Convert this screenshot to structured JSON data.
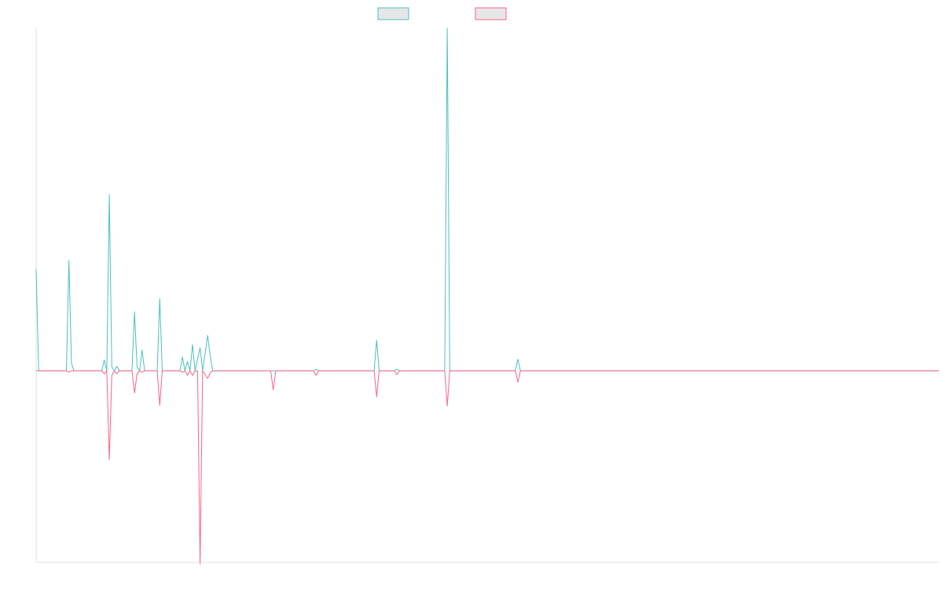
{
  "chart_data": {
    "type": "line",
    "title": "",
    "xlabel": "",
    "ylabel": "",
    "x": [
      0,
      1,
      2,
      3,
      4,
      5,
      6,
      7,
      8,
      9,
      10,
      11,
      12,
      13,
      14,
      15,
      16,
      17,
      18,
      19,
      20,
      21,
      22,
      23,
      24,
      25,
      26,
      27,
      28,
      29,
      30,
      31,
      32,
      33,
      34,
      35,
      36,
      37,
      38,
      39,
      40,
      41,
      42,
      43,
      44,
      45,
      46,
      47,
      48,
      49,
      50,
      51,
      52,
      53,
      54,
      55,
      56,
      57,
      58,
      59,
      60,
      61,
      62,
      63,
      64,
      65,
      66,
      67,
      68,
      69,
      70,
      71,
      72,
      73,
      74,
      75,
      76,
      77,
      78,
      79,
      80,
      81,
      82,
      83,
      84,
      85,
      86,
      87,
      88,
      89,
      90,
      91,
      92,
      93,
      94,
      95,
      96,
      97,
      98,
      99,
      100,
      101,
      102,
      103,
      104,
      105,
      106,
      107,
      108,
      109,
      110,
      111,
      112,
      113,
      114,
      115,
      116,
      117,
      118,
      119,
      120,
      121,
      122,
      123,
      124,
      125,
      126,
      127,
      128,
      129,
      130,
      131,
      132,
      133,
      134,
      135,
      136,
      137,
      138,
      139,
      140,
      141,
      142,
      143,
      144,
      145,
      146,
      147,
      148,
      149,
      150,
      151,
      152,
      153,
      154,
      155,
      156,
      157,
      158,
      159,
      160,
      161,
      162,
      163,
      164,
      165,
      166,
      167,
      168,
      169,
      170,
      171,
      172,
      173,
      174,
      175,
      176,
      177,
      178,
      179,
      180,
      181,
      182,
      183,
      184,
      185,
      186,
      187,
      188,
      189,
      190,
      191,
      192,
      193,
      194,
      195,
      196,
      197,
      198,
      199,
      200,
      201,
      202,
      203,
      204,
      205,
      206,
      207,
      208,
      209,
      210,
      211,
      212,
      213,
      214,
      215,
      216,
      217,
      218,
      219,
      220,
      221,
      222,
      223,
      224,
      225,
      226,
      227,
      228,
      229,
      230,
      231,
      232,
      233,
      234,
      235,
      236,
      237,
      238,
      239,
      240,
      241,
      242,
      243,
      244,
      245,
      246,
      247,
      248,
      249,
      250,
      251,
      252,
      253,
      254,
      255,
      256,
      257,
      258,
      259,
      260,
      261,
      262,
      263,
      264,
      265,
      266,
      267,
      268,
      269,
      270,
      271,
      272,
      273,
      274,
      275,
      276,
      277,
      278,
      279,
      280,
      281,
      282,
      283,
      284,
      285,
      286,
      287,
      288,
      289,
      290,
      291,
      292,
      293,
      294,
      295,
      296,
      297,
      298,
      299,
      300,
      301,
      302,
      303,
      304,
      305,
      306,
      307,
      308,
      309,
      310,
      311,
      312,
      313,
      314,
      315,
      316,
      317,
      318,
      319,
      320,
      321,
      322,
      323,
      324,
      325,
      326,
      327,
      328,
      329,
      330,
      331,
      332,
      333,
      334,
      335,
      336,
      337,
      338,
      339,
      340,
      341,
      342,
      343,
      344,
      345,
      346,
      347,
      348,
      349,
      350,
      351,
      352,
      353,
      354,
      355,
      356,
      357,
      358
    ],
    "ylim": [
      -250,
      447
    ],
    "grid": false,
    "legend_position": "top-center",
    "series": [
      {
        "color": "#4bc0c0",
        "points": [
          [
            0,
            132
          ],
          [
            1,
            0
          ],
          [
            12,
            0
          ],
          [
            13,
            144
          ],
          [
            14,
            10
          ],
          [
            15,
            0
          ],
          [
            26,
            0
          ],
          [
            27,
            14
          ],
          [
            28,
            0
          ],
          [
            29,
            230
          ],
          [
            30,
            5
          ],
          [
            31,
            0
          ],
          [
            32,
            6
          ],
          [
            33,
            0
          ],
          [
            38,
            0
          ],
          [
            39,
            77
          ],
          [
            40,
            5
          ],
          [
            41,
            0
          ],
          [
            42,
            27
          ],
          [
            43,
            0
          ],
          [
            48,
            0
          ],
          [
            49,
            94
          ],
          [
            50,
            0
          ],
          [
            57,
            0
          ],
          [
            58,
            18
          ],
          [
            59,
            0
          ],
          [
            60,
            12
          ],
          [
            61,
            0
          ],
          [
            62,
            34
          ],
          [
            63,
            0
          ],
          [
            65,
            30
          ],
          [
            66,
            0
          ],
          [
            68,
            46
          ],
          [
            69,
            20
          ],
          [
            70,
            0
          ],
          [
            110,
            0
          ],
          [
            111,
            2
          ],
          [
            112,
            0
          ],
          [
            134,
            0
          ],
          [
            135,
            40
          ],
          [
            136,
            0
          ],
          [
            142,
            0
          ],
          [
            143,
            2
          ],
          [
            144,
            0
          ],
          [
            162,
            0
          ],
          [
            163,
            447
          ],
          [
            164,
            0
          ],
          [
            190,
            0
          ],
          [
            191,
            15
          ],
          [
            192,
            0
          ],
          [
            358,
            0
          ]
        ]
      },
      {
        "color": "#ff6384",
        "points": [
          [
            0,
            0
          ],
          [
            12,
            0
          ],
          [
            13,
            -2
          ],
          [
            14,
            0
          ],
          [
            26,
            0
          ],
          [
            27,
            -4
          ],
          [
            28,
            0
          ],
          [
            29,
            -116
          ],
          [
            30,
            -6
          ],
          [
            31,
            0
          ],
          [
            32,
            -4
          ],
          [
            33,
            0
          ],
          [
            38,
            0
          ],
          [
            39,
            -29
          ],
          [
            40,
            -4
          ],
          [
            41,
            0
          ],
          [
            42,
            -2
          ],
          [
            43,
            0
          ],
          [
            48,
            0
          ],
          [
            49,
            -45
          ],
          [
            50,
            0
          ],
          [
            57,
            0
          ],
          [
            58,
            -2
          ],
          [
            59,
            0
          ],
          [
            60,
            -6
          ],
          [
            61,
            0
          ],
          [
            62,
            -6
          ],
          [
            63,
            0
          ],
          [
            64,
            0
          ],
          [
            65,
            -252
          ],
          [
            66,
            0
          ],
          [
            68,
            -10
          ],
          [
            69,
            -3
          ],
          [
            70,
            0
          ],
          [
            93,
            0
          ],
          [
            94,
            -25
          ],
          [
            95,
            0
          ],
          [
            110,
            0
          ],
          [
            111,
            -6
          ],
          [
            112,
            0
          ],
          [
            134,
            0
          ],
          [
            135,
            -34
          ],
          [
            136,
            0
          ],
          [
            142,
            0
          ],
          [
            143,
            -5
          ],
          [
            144,
            0
          ],
          [
            162,
            0
          ],
          [
            163,
            -46
          ],
          [
            164,
            0
          ],
          [
            190,
            0
          ],
          [
            191,
            -15
          ],
          [
            192,
            0
          ],
          [
            358,
            0
          ]
        ]
      }
    ]
  }
}
